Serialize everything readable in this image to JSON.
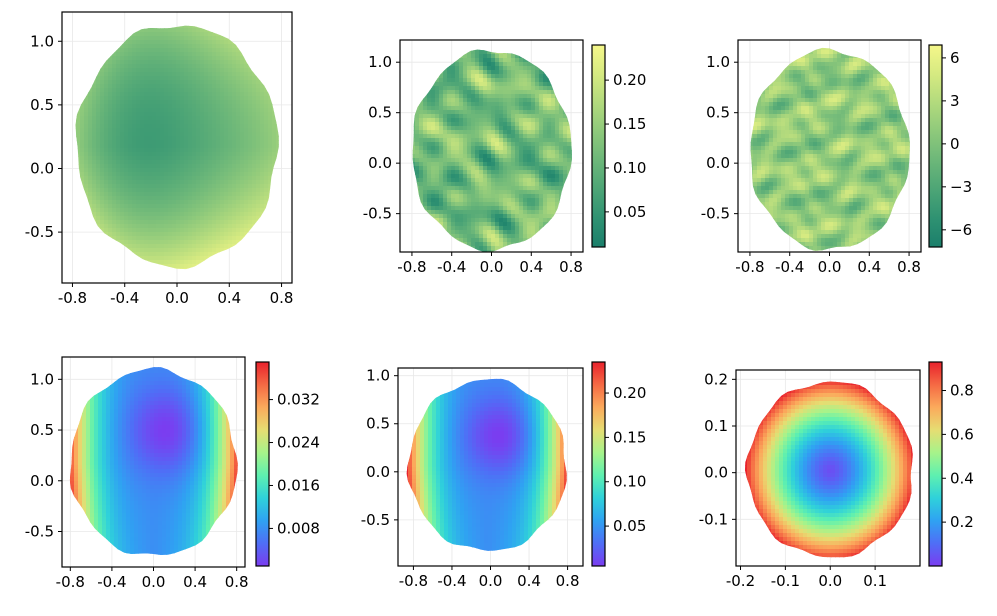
{
  "chart_data": [
    {
      "panel": "top-left",
      "type": "heatmap",
      "xlim": [
        -0.88,
        0.88
      ],
      "ylim": [
        -0.9,
        1.23
      ],
      "x_ticks": [
        -0.8,
        -0.4,
        0.0,
        0.4,
        0.8
      ],
      "x_tick_labels": [
        "-0.8",
        "-0.4",
        "0.0",
        "0.4",
        "0.8"
      ],
      "y_ticks": [
        -0.5,
        0.0,
        0.5,
        1.0
      ],
      "y_tick_labels": [
        "-0.5",
        "0.0",
        "0.5",
        "1.0"
      ],
      "shape_center": [
        0.0,
        0.17
      ],
      "shape_radii": [
        0.77,
        0.96
      ],
      "field": "radial-up",
      "colormap": "summer-teal",
      "colorbar": null
    },
    {
      "panel": "top-middle",
      "type": "heatmap",
      "xlim": [
        -0.92,
        0.92
      ],
      "ylim": [
        -0.88,
        1.22
      ],
      "x_ticks": [
        -0.8,
        -0.4,
        0.0,
        0.4,
        0.8
      ],
      "x_tick_labels": [
        "-0.8",
        "-0.4",
        "0.0",
        "0.4",
        "0.8"
      ],
      "y_ticks": [
        -0.5,
        0.0,
        0.5,
        1.0
      ],
      "y_tick_labels": [
        "-0.5",
        "0.0",
        "0.5",
        "1.0"
      ],
      "shape_center": [
        0.0,
        0.12
      ],
      "shape_radii": [
        0.8,
        1.0
      ],
      "field": "streaky",
      "colormap": "summer-teal",
      "colorbar": {
        "range": [
          0.01,
          0.24
        ],
        "ticks": [
          0.05,
          0.1,
          0.15,
          0.2
        ],
        "tick_labels": [
          "0.05",
          "0.10",
          "0.15",
          "0.20"
        ]
      }
    },
    {
      "panel": "top-right",
      "type": "heatmap",
      "xlim": [
        -0.92,
        0.92
      ],
      "ylim": [
        -0.88,
        1.22
      ],
      "x_ticks": [
        -0.8,
        -0.4,
        0.0,
        0.4,
        0.8
      ],
      "x_tick_labels": [
        "-0.8",
        "-0.4",
        "0.0",
        "0.4",
        "0.8"
      ],
      "y_ticks": [
        -0.5,
        0.0,
        0.5,
        1.0
      ],
      "y_tick_labels": [
        "-0.5",
        "0.0",
        "0.5",
        "1.0"
      ],
      "shape_center": [
        0.0,
        0.12
      ],
      "shape_radii": [
        0.8,
        1.0
      ],
      "field": "streaky-signed",
      "colormap": "summer-teal",
      "colorbar": {
        "range": [
          -7.2,
          6.9
        ],
        "ticks": [
          -6,
          -3,
          0,
          3,
          6
        ],
        "tick_labels": [
          "−6",
          "−3",
          "0",
          "3",
          "6"
        ]
      }
    },
    {
      "panel": "bottom-left",
      "type": "heatmap",
      "xlim": [
        -0.88,
        0.88
      ],
      "ylim": [
        -0.85,
        1.22
      ],
      "x_ticks": [
        -0.8,
        -0.4,
        0.0,
        0.4,
        0.8
      ],
      "x_tick_labels": [
        "-0.8",
        "-0.4",
        "0.0",
        "0.4",
        "0.8"
      ],
      "y_ticks": [
        -0.5,
        0.0,
        0.5,
        1.0
      ],
      "y_tick_labels": [
        "-0.5",
        "0.0",
        "0.5",
        "1.0"
      ],
      "shape_center": [
        0.0,
        0.17
      ],
      "shape_radii": [
        0.8,
        0.93
      ],
      "field": "error-sides",
      "colormap": "rainbow",
      "colorbar": {
        "range": [
          0.001,
          0.039
        ],
        "ticks": [
          0.008,
          0.016,
          0.024,
          0.032
        ],
        "tick_labels": [
          "0.008",
          "0.016",
          "0.024",
          "0.032"
        ]
      }
    },
    {
      "panel": "bottom-middle",
      "type": "heatmap",
      "xlim": [
        -0.96,
        0.96
      ],
      "ylim": [
        -0.98,
        1.08
      ],
      "x_ticks": [
        -0.8,
        -0.4,
        0.0,
        0.4,
        0.8
      ],
      "x_tick_labels": [
        "-0.8",
        "-0.4",
        "0.0",
        "0.4",
        "0.8"
      ],
      "y_ticks": [
        -0.5,
        0.0,
        0.5,
        1.0
      ],
      "y_tick_labels": [
        "-0.5",
        "0.0",
        "0.5",
        "1.0"
      ],
      "shape_center": [
        -0.03,
        0.06
      ],
      "shape_radii": [
        0.82,
        0.9
      ],
      "field": "error-sides",
      "colormap": "rainbow",
      "colorbar": {
        "range": [
          0.005,
          0.235
        ],
        "ticks": [
          0.05,
          0.1,
          0.15,
          0.2
        ],
        "tick_labels": [
          "0.05",
          "0.10",
          "0.15",
          "0.20"
        ]
      }
    },
    {
      "panel": "bottom-right",
      "type": "heatmap",
      "xlim": [
        -0.21,
        0.2
      ],
      "ylim": [
        -0.2,
        0.22
      ],
      "x_ticks": [
        -0.2,
        -0.1,
        0.0,
        0.1
      ],
      "x_tick_labels": [
        "-0.2",
        "-0.1",
        "0.0",
        "0.1"
      ],
      "y_ticks": [
        -0.1,
        0.0,
        0.1,
        0.2
      ],
      "y_tick_labels": [
        "-0.1",
        "0.0",
        "0.1",
        "0.2"
      ],
      "shape_center": [
        0.0,
        0.005
      ],
      "shape_radii": [
        0.185,
        0.19
      ],
      "field": "radial",
      "colormap": "rainbow",
      "colorbar": {
        "range": [
          0.0,
          0.93
        ],
        "ticks": [
          0.2,
          0.4,
          0.6,
          0.8
        ],
        "tick_labels": [
          "0.2",
          "0.4",
          "0.6",
          "0.8"
        ]
      }
    }
  ]
}
